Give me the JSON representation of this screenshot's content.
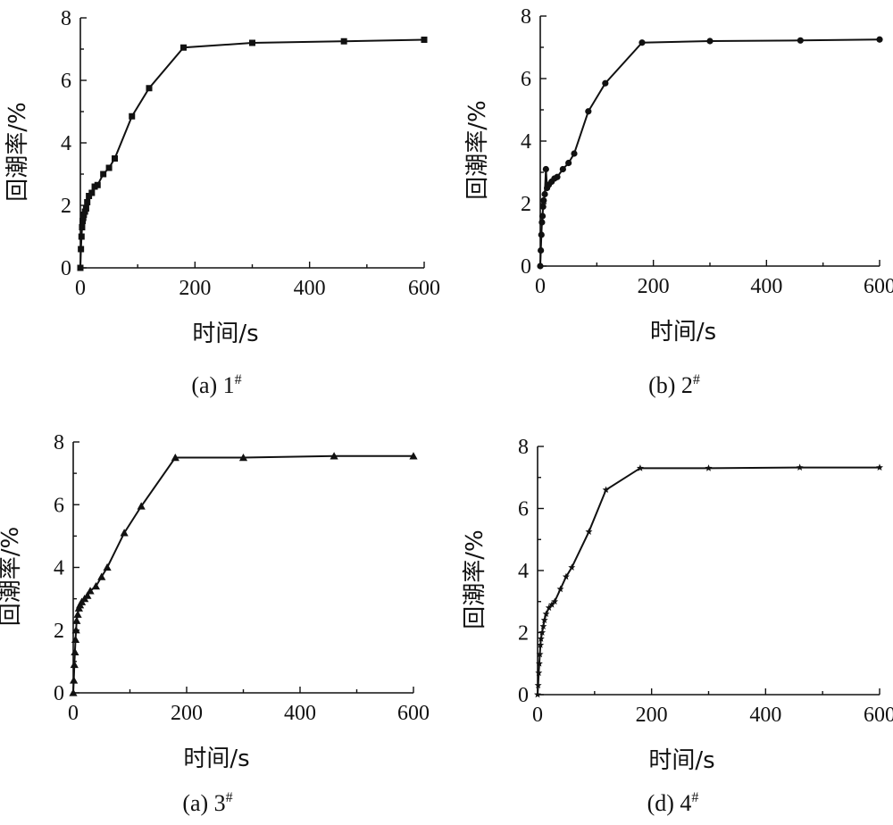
{
  "chart_data": [
    {
      "type": "line",
      "caption": "(a) 1",
      "caption_sup": "#",
      "xlabel": "时间/s",
      "ylabel": "回潮率/%",
      "xlim": [
        0,
        600
      ],
      "ylim": [
        0,
        8
      ],
      "xticks": [
        0,
        200,
        400,
        600
      ],
      "yticks": [
        0,
        2,
        4,
        6,
        8
      ],
      "marker": "square",
      "x": [
        0,
        1,
        2,
        3,
        4,
        5,
        6,
        8,
        10,
        12,
        15,
        20,
        25,
        30,
        40,
        50,
        60,
        90,
        120,
        180,
        300,
        460,
        600
      ],
      "y": [
        0,
        0.6,
        1.0,
        1.3,
        1.5,
        1.6,
        1.7,
        1.8,
        1.9,
        2.1,
        2.3,
        2.4,
        2.6,
        2.65,
        3.0,
        3.2,
        3.5,
        4.85,
        5.75,
        7.05,
        7.2,
        7.25,
        7.3
      ]
    },
    {
      "type": "line",
      "caption": "(b) 2",
      "caption_sup": "#",
      "xlabel": "时间/s",
      "ylabel": "回潮率/%",
      "xlim": [
        0,
        600
      ],
      "ylim": [
        0,
        8
      ],
      "xticks": [
        0,
        200,
        400,
        600
      ],
      "yticks": [
        0,
        2,
        4,
        6,
        8
      ],
      "marker": "circle",
      "x": [
        0,
        1,
        2,
        3,
        4,
        5,
        6,
        8,
        10,
        12,
        15,
        20,
        25,
        30,
        40,
        50,
        60,
        85,
        115,
        180,
        300,
        460,
        600
      ],
      "y": [
        0,
        0.5,
        1.0,
        1.4,
        1.6,
        1.9,
        2.1,
        2.3,
        3.1,
        2.5,
        2.6,
        2.7,
        2.8,
        2.85,
        3.1,
        3.3,
        3.6,
        4.95,
        5.85,
        7.15,
        7.2,
        7.22,
        7.25
      ]
    },
    {
      "type": "line",
      "caption": "(a) 3",
      "caption_sup": "#",
      "xlabel": "时间/s",
      "ylabel": "回潮率/%",
      "xlim": [
        0,
        600
      ],
      "ylim": [
        0,
        8
      ],
      "xticks": [
        0,
        200,
        400,
        600
      ],
      "yticks": [
        0,
        2,
        4,
        6,
        8
      ],
      "marker": "triangle",
      "x": [
        0,
        1,
        2,
        3,
        4,
        5,
        6,
        8,
        10,
        12,
        15,
        20,
        25,
        30,
        40,
        50,
        60,
        90,
        120,
        180,
        300,
        460,
        600
      ],
      "y": [
        0,
        0.4,
        0.9,
        1.3,
        1.7,
        2.0,
        2.3,
        2.5,
        2.7,
        2.8,
        2.9,
        3.0,
        3.1,
        3.25,
        3.4,
        3.7,
        4.0,
        5.1,
        5.95,
        7.5,
        7.5,
        7.55,
        7.55
      ]
    },
    {
      "type": "line",
      "caption": "(d) 4",
      "caption_sup": "#",
      "xlabel": "时间/s",
      "ylabel": "回潮率/%",
      "xlim": [
        0,
        600
      ],
      "ylim": [
        0,
        8
      ],
      "xticks": [
        0,
        200,
        400,
        600
      ],
      "yticks": [
        0,
        2,
        4,
        6,
        8
      ],
      "marker": "star",
      "x": [
        0,
        1,
        2,
        3,
        4,
        5,
        6,
        8,
        10,
        12,
        15,
        20,
        25,
        30,
        40,
        50,
        60,
        90,
        120,
        180,
        300,
        460,
        600
      ],
      "y": [
        0,
        0.3,
        0.7,
        1.0,
        1.3,
        1.6,
        1.8,
        2.0,
        2.2,
        2.4,
        2.6,
        2.8,
        2.9,
        3.0,
        3.4,
        3.8,
        4.1,
        5.25,
        6.6,
        7.3,
        7.3,
        7.32,
        7.32
      ]
    }
  ]
}
